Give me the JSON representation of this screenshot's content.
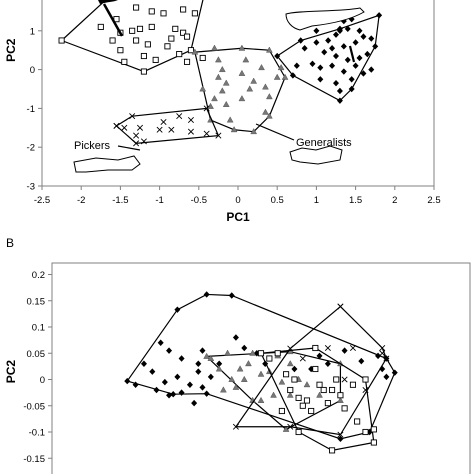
{
  "chart_data": [
    {
      "panel": "A",
      "type": "scatter",
      "title": "",
      "xlabel": "PC1",
      "ylabel": "PC2",
      "xlim": [
        -2.5,
        2.5
      ],
      "ylim": [
        -3,
        2
      ],
      "xticks": [
        -2.5,
        -2,
        -1.5,
        -1,
        -0.5,
        0,
        0.5,
        1,
        1.5,
        2,
        2.5
      ],
      "yticks": [
        -3,
        -2,
        -1,
        0,
        1,
        2
      ],
      "annotations": [
        "Pickers",
        "Generalists"
      ],
      "series": [
        {
          "marker": "square",
          "points": [
            [
              -1.45,
              2.15
            ],
            [
              -1.2,
              2.05
            ],
            [
              -1.4,
              1.95
            ],
            [
              -1.3,
              1.6
            ],
            [
              -1.1,
              1.5
            ],
            [
              -1.55,
              1.3
            ],
            [
              -0.55,
              1.45
            ],
            [
              -0.7,
              1.55
            ],
            [
              -1.35,
              1.0
            ],
            [
              -1.25,
              1.05
            ],
            [
              -1.1,
              1.1
            ],
            [
              -0.8,
              1.05
            ],
            [
              -0.7,
              0.95
            ],
            [
              -1.5,
              0.95
            ],
            [
              -1.6,
              0.75
            ],
            [
              -1.3,
              0.75
            ],
            [
              -1.15,
              0.65
            ],
            [
              -0.85,
              0.8
            ],
            [
              -0.65,
              0.85
            ],
            [
              -0.9,
              0.6
            ],
            [
              -0.75,
              0.4
            ],
            [
              -1.2,
              0.35
            ],
            [
              -1.05,
              0.25
            ],
            [
              -0.45,
              0.3
            ],
            [
              -0.65,
              0.2
            ],
            [
              -1.5,
              0.5
            ],
            [
              -1.45,
              0.2
            ],
            [
              -0.95,
              1.45
            ],
            [
              -1.75,
              1.1
            ]
          ],
          "hull": [
            [
              -2.25,
              0.75
            ],
            [
              -1.55,
              2.05
            ],
            [
              -1.45,
              2.6
            ],
            [
              -0.4,
              2.2
            ],
            [
              -0.6,
              0.5
            ],
            [
              -1.2,
              -0.05
            ],
            [
              -2.25,
              0.75
            ]
          ]
        },
        {
          "marker": "diamond",
          "points": [
            [
              0.85,
              0.55
            ],
            [
              1.0,
              0.7
            ],
            [
              1.15,
              0.75
            ],
            [
              1.25,
              0.9
            ],
            [
              1.3,
              1.0
            ],
            [
              1.4,
              1.05
            ],
            [
              1.55,
              1.0
            ],
            [
              1.6,
              0.85
            ],
            [
              1.7,
              0.8
            ],
            [
              1.5,
              0.7
            ],
            [
              1.35,
              0.6
            ],
            [
              1.2,
              0.55
            ],
            [
              1.1,
              0.45
            ],
            [
              1.25,
              0.35
            ],
            [
              1.4,
              0.25
            ],
            [
              1.55,
              0.3
            ],
            [
              1.65,
              0.4
            ],
            [
              0.95,
              0.15
            ],
            [
              1.05,
              0.05
            ],
            [
              1.2,
              0.1
            ],
            [
              1.35,
              -0.05
            ],
            [
              1.5,
              0.1
            ],
            [
              1.6,
              -0.1
            ],
            [
              1.7,
              0.0
            ],
            [
              1.05,
              -0.25
            ],
            [
              1.25,
              -0.35
            ],
            [
              1.45,
              -0.25
            ],
            [
              1.3,
              -0.55
            ],
            [
              0.75,
              0.1
            ],
            [
              1.0,
              1.0
            ],
            [
              1.35,
              1.25
            ],
            [
              1.45,
              1.3
            ]
          ],
          "hull": [
            [
              0.5,
              0.35
            ],
            [
              0.8,
              0.75
            ],
            [
              1.3,
              1.05
            ],
            [
              1.8,
              1.4
            ],
            [
              1.75,
              0.6
            ],
            [
              1.45,
              -0.5
            ],
            [
              1.3,
              -0.8
            ],
            [
              0.7,
              -0.15
            ],
            [
              0.5,
              0.35
            ]
          ]
        },
        {
          "marker": "triangle",
          "points": [
            [
              -0.3,
              0.55
            ],
            [
              -0.25,
              0.25
            ],
            [
              -0.2,
              0.0
            ],
            [
              -0.25,
              -0.2
            ],
            [
              -0.15,
              -0.35
            ],
            [
              -0.2,
              -0.55
            ],
            [
              -0.3,
              -0.75
            ],
            [
              -0.15,
              -0.9
            ],
            [
              0.05,
              -0.1
            ],
            [
              0.1,
              0.25
            ],
            [
              0.2,
              -0.3
            ],
            [
              0.15,
              -0.5
            ],
            [
              0.3,
              0.05
            ],
            [
              0.35,
              -0.45
            ],
            [
              0.4,
              -0.7
            ],
            [
              0.35,
              -1.1
            ],
            [
              0.5,
              -0.2
            ],
            [
              0.55,
              0.05
            ],
            [
              -0.45,
              -0.5
            ],
            [
              -0.35,
              -0.95
            ],
            [
              0.05,
              -0.75
            ],
            [
              -0.1,
              -1.3
            ]
          ],
          "hull": [
            [
              -0.55,
              0.45
            ],
            [
              0.05,
              0.55
            ],
            [
              0.4,
              0.5
            ],
            [
              0.6,
              -0.2
            ],
            [
              0.4,
              -1.2
            ],
            [
              0.2,
              -1.6
            ],
            [
              -0.05,
              -1.55
            ],
            [
              -0.35,
              -1.3
            ],
            [
              -0.55,
              0.45
            ]
          ]
        },
        {
          "marker": "x",
          "points": [
            [
              -1.55,
              -1.45
            ],
            [
              -1.45,
              -1.5
            ],
            [
              -1.3,
              -1.7
            ],
            [
              -1.25,
              -1.5
            ],
            [
              -0.95,
              -1.35
            ],
            [
              -0.75,
              -1.2
            ],
            [
              -0.6,
              -1.3
            ],
            [
              -0.4,
              -1.65
            ],
            [
              -0.6,
              -1.6
            ],
            [
              -1.2,
              -1.85
            ],
            [
              -1.0,
              -1.55
            ],
            [
              -0.85,
              -1.55
            ]
          ],
          "hull": [
            [
              -1.55,
              -1.45
            ],
            [
              -1.35,
              -1.2
            ],
            [
              -0.4,
              -1.0
            ],
            [
              -0.25,
              -1.7
            ],
            [
              -1.3,
              -1.9
            ],
            [
              -1.55,
              -1.45
            ]
          ]
        }
      ]
    },
    {
      "panel": "B",
      "type": "scatter",
      "title": "",
      "xlabel": "",
      "ylabel": "PC2",
      "ylim": [
        -0.175,
        0.2
      ],
      "yticks": [
        -0.15,
        -0.1,
        -0.05,
        0,
        0.05,
        0.1,
        0.15,
        0.2
      ],
      "series": [
        {
          "marker": "diamond",
          "points": [
            [
              0.26,
              0.07
            ],
            [
              0.28,
              0.055
            ],
            [
              0.31,
              0.04
            ],
            [
              0.35,
              0.03
            ],
            [
              0.36,
              0.055
            ],
            [
              0.24,
              0.015
            ],
            [
              0.27,
              -0.005
            ],
            [
              0.3,
              0.005
            ],
            [
              0.33,
              -0.01
            ],
            [
              0.35,
              0.015
            ],
            [
              0.25,
              -0.02
            ],
            [
              0.28,
              -0.03
            ],
            [
              0.31,
              -0.025
            ],
            [
              0.34,
              -0.045
            ],
            [
              0.36,
              -0.015
            ],
            [
              0.38,
              0.005
            ],
            [
              0.44,
              0.08
            ],
            [
              0.46,
              0.06
            ],
            [
              0.4,
              0.03
            ],
            [
              0.2,
              -0.01
            ],
            [
              0.22,
              0.03
            ],
            [
              0.49,
              0.05
            ],
            [
              0.51,
              0.03
            ],
            [
              0.64,
              0.045
            ],
            [
              0.66,
              0.03
            ],
            [
              0.79,
              0.02
            ],
            [
              0.8,
              0.005
            ],
            [
              0.7,
              0.055
            ],
            [
              0.78,
              0.045
            ],
            [
              0.74,
              0.035
            ],
            [
              0.62,
              0.02
            ],
            [
              0.58,
              0.02
            ]
          ],
          "hull": [
            [
              0.18,
              -0.003
            ],
            [
              0.3,
              0.133
            ],
            [
              0.37,
              0.162
            ],
            [
              0.43,
              0.16
            ],
            [
              0.8,
              0.04
            ],
            [
              0.82,
              0.013
            ],
            [
              0.76,
              -0.1
            ],
            [
              0.69,
              -0.113
            ],
            [
              0.37,
              -0.027
            ],
            [
              0.29,
              -0.028
            ],
            [
              0.18,
              -0.003
            ]
          ]
        },
        {
          "marker": "triangle",
          "points": [
            [
              0.38,
              0.04
            ],
            [
              0.4,
              0.02
            ],
            [
              0.42,
              0.05
            ],
            [
              0.43,
              0.0
            ],
            [
              0.45,
              0.02
            ],
            [
              0.47,
              0.03
            ],
            [
              0.48,
              0.05
            ],
            [
              0.41,
              -0.02
            ],
            [
              0.44,
              -0.015
            ],
            [
              0.46,
              0.0
            ],
            [
              0.5,
              0.01
            ],
            [
              0.52,
              0.015
            ],
            [
              0.54,
              0.045
            ],
            [
              0.55,
              -0.005
            ],
            [
              0.57,
              0.03
            ],
            [
              0.5,
              -0.04
            ],
            [
              0.53,
              -0.03
            ],
            [
              0.55,
              -0.06
            ],
            [
              0.57,
              -0.03
            ],
            [
              0.59,
              0.0
            ],
            [
              0.61,
              -0.01
            ],
            [
              0.64,
              -0.03
            ]
          ],
          "hull": [
            [
              0.37,
              0.044
            ],
            [
              0.57,
              0.053
            ],
            [
              0.69,
              0.03
            ],
            [
              0.69,
              -0.04
            ],
            [
              0.56,
              -0.095
            ],
            [
              0.48,
              -0.04
            ],
            [
              0.37,
              0.044
            ]
          ]
        },
        {
          "marker": "square",
          "points": [
            [
              0.54,
              0.05
            ],
            [
              0.56,
              0.01
            ],
            [
              0.57,
              -0.02
            ],
            [
              0.58,
              0.0
            ],
            [
              0.59,
              -0.035
            ],
            [
              0.6,
              -0.05
            ],
            [
              0.62,
              -0.06
            ],
            [
              0.64,
              -0.01
            ],
            [
              0.65,
              -0.02
            ],
            [
              0.66,
              -0.045
            ],
            [
              0.67,
              -0.02
            ],
            [
              0.68,
              0.0
            ],
            [
              0.69,
              -0.03
            ],
            [
              0.7,
              -0.055
            ],
            [
              0.72,
              -0.01
            ],
            [
              0.73,
              -0.08
            ],
            [
              0.75,
              -0.1
            ],
            [
              0.77,
              -0.095
            ],
            [
              0.61,
              -0.04
            ],
            [
              0.63,
              0.02
            ],
            [
              0.52,
              0.04
            ],
            [
              0.55,
              -0.06
            ]
          ],
          "hull": [
            [
              0.5,
              0.05
            ],
            [
              0.63,
              0.06
            ],
            [
              0.75,
              0.0
            ],
            [
              0.77,
              -0.12
            ],
            [
              0.67,
              -0.135
            ],
            [
              0.59,
              -0.1
            ],
            [
              0.5,
              0.05
            ]
          ]
        },
        {
          "marker": "x",
          "points": [
            [
              0.69,
              0.139
            ],
            [
              0.79,
              0.05
            ],
            [
              0.7,
              0.0
            ],
            [
              0.75,
              -0.02
            ],
            [
              0.72,
              0.06
            ],
            [
              0.66,
              0.06
            ],
            [
              0.6,
              0.04
            ]
          ],
          "hull": [
            [
              0.57,
              0.059
            ],
            [
              0.69,
              0.139
            ],
            [
              0.79,
              0.06
            ],
            [
              0.8,
              0.04
            ],
            [
              0.69,
              -0.105
            ],
            [
              0.57,
              -0.09
            ],
            [
              0.44,
              -0.09
            ],
            [
              0.57,
              0.059
            ]
          ]
        }
      ]
    }
  ],
  "panel_b_label": "B"
}
